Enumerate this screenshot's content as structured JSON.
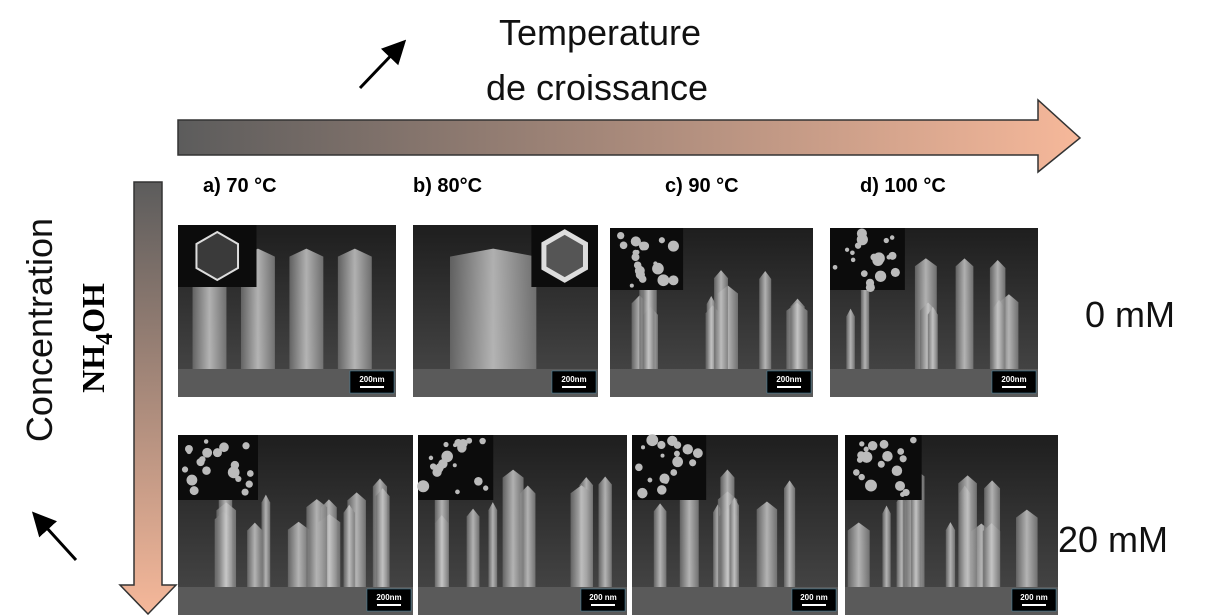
{
  "header": {
    "title_lines": [
      "Temperature",
      "de croissance"
    ]
  },
  "columns": [
    "a) 70 °C",
    "b) 80°C",
    "c) 90 °C",
    "d) 100 °C"
  ],
  "rows": [
    {
      "label": "0 mM",
      "scale_bars": [
        "200nm",
        "200nm",
        "200nm",
        "200nm"
      ]
    },
    {
      "label": "20 mM",
      "scale_bars": [
        "200nm",
        "200 nm",
        "200 nm",
        "200 nm"
      ]
    }
  ],
  "side": {
    "label": "Concentration",
    "formula": {
      "prefix": "NH",
      "subscript": "4",
      "suffix": "OH"
    }
  }
}
